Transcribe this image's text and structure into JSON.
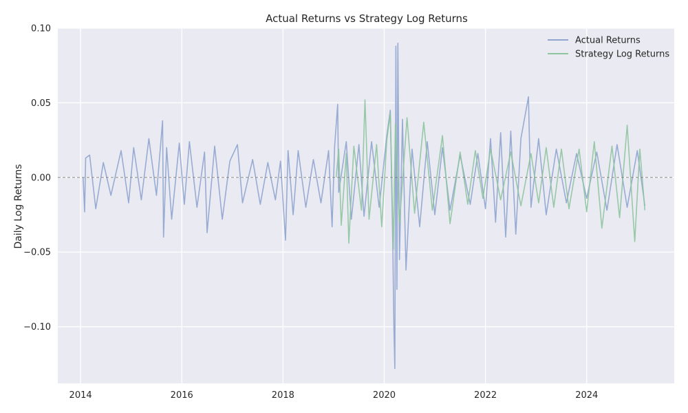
{
  "chart_data": {
    "type": "line",
    "title": "Actual Returns vs Strategy Log Returns",
    "xlabel": "",
    "ylabel": "Daily Log Returns",
    "xlim": [
      2013.55,
      2025.73
    ],
    "ylim": [
      -0.138,
      0.1
    ],
    "x_ticks": [
      2014,
      2016,
      2018,
      2020,
      2022,
      2024
    ],
    "x_tick_labels": [
      "2014",
      "2016",
      "2018",
      "2020",
      "2022",
      "2024"
    ],
    "y_ticks": [
      0.1,
      0.05,
      0.0,
      -0.05,
      -0.1
    ],
    "y_tick_labels": [
      "0.10",
      "0.05",
      "0.00",
      "−0.05",
      "−0.10"
    ],
    "grid": true,
    "background": "#eaeaf2",
    "legend_position": "top-right",
    "zero_line": {
      "y": 0.0,
      "style": "dashed",
      "color": "#777777"
    },
    "series": [
      {
        "name": "Actual Returns",
        "color": "#8fa4cf",
        "points": [
          [
            2014.05,
            0.0
          ],
          [
            2014.08,
            -0.023
          ],
          [
            2014.1,
            0.013
          ],
          [
            2014.18,
            0.015
          ],
          [
            2014.3,
            -0.021
          ],
          [
            2014.45,
            0.01
          ],
          [
            2014.6,
            -0.012
          ],
          [
            2014.8,
            0.018
          ],
          [
            2014.95,
            -0.017
          ],
          [
            2015.05,
            0.02
          ],
          [
            2015.2,
            -0.015
          ],
          [
            2015.35,
            0.026
          ],
          [
            2015.5,
            -0.012
          ],
          [
            2015.62,
            0.038
          ],
          [
            2015.64,
            -0.04
          ],
          [
            2015.7,
            0.02
          ],
          [
            2015.8,
            -0.028
          ],
          [
            2015.95,
            0.023
          ],
          [
            2016.05,
            -0.018
          ],
          [
            2016.15,
            0.024
          ],
          [
            2016.3,
            -0.02
          ],
          [
            2016.45,
            0.017
          ],
          [
            2016.5,
            -0.037
          ],
          [
            2016.65,
            0.021
          ],
          [
            2016.8,
            -0.028
          ],
          [
            2016.95,
            0.011
          ],
          [
            2017.1,
            0.022
          ],
          [
            2017.2,
            -0.017
          ],
          [
            2017.4,
            0.012
          ],
          [
            2017.55,
            -0.018
          ],
          [
            2017.7,
            0.01
          ],
          [
            2017.85,
            -0.015
          ],
          [
            2017.95,
            0.011
          ],
          [
            2018.05,
            -0.042
          ],
          [
            2018.1,
            0.018
          ],
          [
            2018.2,
            -0.025
          ],
          [
            2018.3,
            0.018
          ],
          [
            2018.45,
            -0.02
          ],
          [
            2018.6,
            0.012
          ],
          [
            2018.75,
            -0.017
          ],
          [
            2018.9,
            0.018
          ],
          [
            2018.97,
            -0.033
          ],
          [
            2019.02,
            0.021
          ],
          [
            2019.08,
            0.049
          ],
          [
            2019.1,
            -0.01
          ],
          [
            2019.25,
            0.024
          ],
          [
            2019.35,
            -0.028
          ],
          [
            2019.5,
            0.022
          ],
          [
            2019.6,
            -0.026
          ],
          [
            2019.75,
            0.024
          ],
          [
            2019.9,
            -0.02
          ],
          [
            2020.05,
            0.028
          ],
          [
            2020.12,
            0.045
          ],
          [
            2020.17,
            -0.047
          ],
          [
            2020.19,
            -0.1
          ],
          [
            2020.21,
            -0.128
          ],
          [
            2020.23,
            0.088
          ],
          [
            2020.25,
            -0.075
          ],
          [
            2020.27,
            0.09
          ],
          [
            2020.3,
            -0.055
          ],
          [
            2020.36,
            0.039
          ],
          [
            2020.43,
            -0.062
          ],
          [
            2020.55,
            0.019
          ],
          [
            2020.7,
            -0.033
          ],
          [
            2020.85,
            0.024
          ],
          [
            2021.0,
            -0.025
          ],
          [
            2021.15,
            0.02
          ],
          [
            2021.3,
            -0.022
          ],
          [
            2021.5,
            0.015
          ],
          [
            2021.7,
            -0.018
          ],
          [
            2021.85,
            0.016
          ],
          [
            2022.0,
            -0.021
          ],
          [
            2022.1,
            0.026
          ],
          [
            2022.2,
            -0.03
          ],
          [
            2022.3,
            0.03
          ],
          [
            2022.4,
            -0.04
          ],
          [
            2022.5,
            0.031
          ],
          [
            2022.6,
            -0.038
          ],
          [
            2022.7,
            0.026
          ],
          [
            2022.85,
            0.054
          ],
          [
            2022.9,
            -0.02
          ],
          [
            2023.05,
            0.026
          ],
          [
            2023.2,
            -0.025
          ],
          [
            2023.4,
            0.019
          ],
          [
            2023.6,
            -0.017
          ],
          [
            2023.8,
            0.016
          ],
          [
            2024.0,
            -0.014
          ],
          [
            2024.2,
            0.017
          ],
          [
            2024.4,
            -0.022
          ],
          [
            2024.6,
            0.022
          ],
          [
            2024.8,
            -0.02
          ],
          [
            2025.0,
            0.018
          ],
          [
            2025.15,
            -0.019
          ]
        ]
      },
      {
        "name": "Strategy Log Returns",
        "color": "#8ec49e",
        "points": [
          [
            2019.05,
            0.0
          ],
          [
            2019.1,
            0.019
          ],
          [
            2019.15,
            -0.032
          ],
          [
            2019.25,
            0.016
          ],
          [
            2019.3,
            -0.044
          ],
          [
            2019.4,
            0.021
          ],
          [
            2019.55,
            -0.022
          ],
          [
            2019.62,
            0.052
          ],
          [
            2019.7,
            -0.028
          ],
          [
            2019.85,
            0.022
          ],
          [
            2019.95,
            -0.033
          ],
          [
            2020.05,
            0.025
          ],
          [
            2020.12,
            0.043
          ],
          [
            2020.18,
            -0.048
          ],
          [
            2020.22,
            0.036
          ],
          [
            2020.3,
            -0.031
          ],
          [
            2020.45,
            0.04
          ],
          [
            2020.6,
            -0.024
          ],
          [
            2020.78,
            0.037
          ],
          [
            2020.95,
            -0.022
          ],
          [
            2021.15,
            0.028
          ],
          [
            2021.3,
            -0.031
          ],
          [
            2021.5,
            0.017
          ],
          [
            2021.65,
            -0.018
          ],
          [
            2021.8,
            0.018
          ],
          [
            2021.95,
            -0.014
          ],
          [
            2022.1,
            0.019
          ],
          [
            2022.3,
            -0.015
          ],
          [
            2022.5,
            0.017
          ],
          [
            2022.7,
            -0.019
          ],
          [
            2022.9,
            0.016
          ],
          [
            2023.05,
            -0.017
          ],
          [
            2023.2,
            0.02
          ],
          [
            2023.35,
            -0.02
          ],
          [
            2023.5,
            0.019
          ],
          [
            2023.65,
            -0.021
          ],
          [
            2023.85,
            0.019
          ],
          [
            2024.0,
            -0.023
          ],
          [
            2024.15,
            0.024
          ],
          [
            2024.3,
            -0.034
          ],
          [
            2024.5,
            0.021
          ],
          [
            2024.65,
            -0.027
          ],
          [
            2024.8,
            0.035
          ],
          [
            2024.95,
            -0.043
          ],
          [
            2025.05,
            0.019
          ],
          [
            2025.15,
            -0.022
          ]
        ]
      }
    ]
  }
}
